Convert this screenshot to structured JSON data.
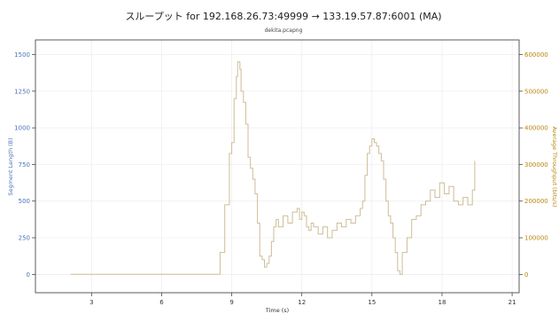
{
  "chart_data": {
    "type": "line",
    "title": "スループット for 192.168.26.73:49999 → 133.19.57.87:6001 (MA)",
    "subtitle": "dekita.pcapng",
    "xlabel": "Time (s)",
    "ylabel_left": "Segment Length (B)",
    "ylabel_right": "Average Throughput (bits/s)",
    "xlim": [
      0.6,
      21.3
    ],
    "ylim_left": [
      -125,
      1600
    ],
    "ylim_right": [
      -50000,
      640000
    ],
    "x_ticks": [
      3,
      6,
      9,
      12,
      15,
      18,
      21
    ],
    "y_left_ticks": [
      0,
      250,
      500,
      750,
      1000,
      1250,
      1500
    ],
    "y_right_ticks": [
      0,
      100000,
      200000,
      300000,
      400000,
      500000,
      600000
    ],
    "grid": true,
    "colors": {
      "left_axis": "#4a72b8",
      "right_axis": "#b8860b",
      "series": "#cdbd98",
      "grid": "#ececec"
    },
    "series": [
      {
        "axis": "right",
        "x": [
          2.1,
          8.3,
          8.5,
          8.7,
          8.9,
          9.0,
          9.1,
          9.2,
          9.25,
          9.35,
          9.4,
          9.5,
          9.6,
          9.7,
          9.8,
          9.9,
          10.0,
          10.1,
          10.2,
          10.3,
          10.4,
          10.5,
          10.6,
          10.7,
          10.8,
          10.9,
          11.0,
          11.2,
          11.4,
          11.6,
          11.8,
          11.9,
          12.0,
          12.1,
          12.2,
          12.3,
          12.4,
          12.5,
          12.7,
          12.9,
          13.1,
          13.3,
          13.5,
          13.7,
          13.9,
          14.1,
          14.3,
          14.5,
          14.6,
          14.7,
          14.8,
          14.9,
          15.0,
          15.1,
          15.2,
          15.3,
          15.4,
          15.5,
          15.6,
          15.7,
          15.8,
          15.9,
          16.0,
          16.1,
          16.2,
          16.3,
          16.5,
          16.7,
          16.9,
          17.1,
          17.3,
          17.5,
          17.7,
          17.9,
          18.1,
          18.3,
          18.5,
          18.7,
          18.9,
          19.1,
          19.3,
          19.4
        ],
        "values": [
          0,
          0,
          60000,
          190000,
          330000,
          360000,
          480000,
          540000,
          580000,
          560000,
          500000,
          470000,
          410000,
          320000,
          290000,
          260000,
          220000,
          140000,
          50000,
          40000,
          20000,
          30000,
          50000,
          90000,
          130000,
          150000,
          130000,
          160000,
          140000,
          170000,
          180000,
          150000,
          170000,
          160000,
          130000,
          120000,
          140000,
          130000,
          110000,
          130000,
          100000,
          120000,
          140000,
          130000,
          150000,
          140000,
          160000,
          180000,
          200000,
          270000,
          330000,
          350000,
          370000,
          360000,
          350000,
          330000,
          310000,
          260000,
          200000,
          160000,
          140000,
          100000,
          60000,
          10000,
          0,
          60000,
          100000,
          150000,
          160000,
          190000,
          200000,
          230000,
          210000,
          250000,
          220000,
          240000,
          200000,
          190000,
          210000,
          190000,
          230000,
          310000
        ]
      }
    ]
  }
}
